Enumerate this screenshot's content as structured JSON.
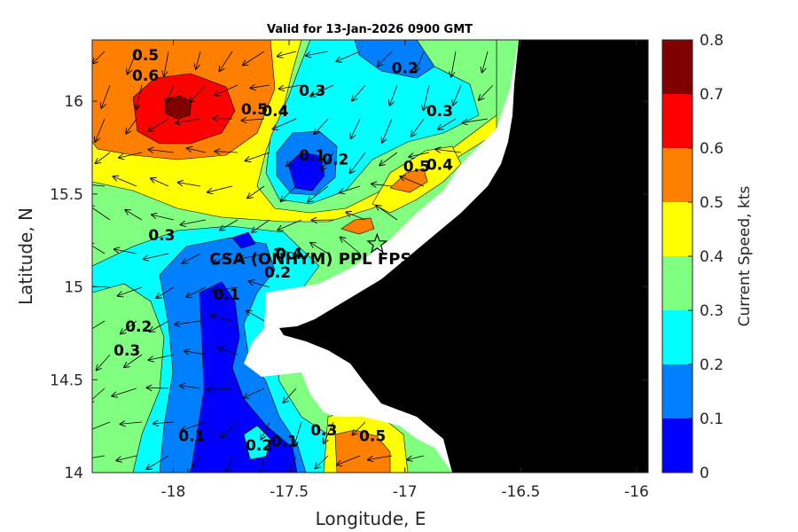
{
  "chart_data": {
    "type": "heatmap",
    "title": "Valid for 13-Jan-2026 0900 GMT",
    "xlabel": "Longitude, E",
    "ylabel": "Latitude, N",
    "xlim": [
      -18.35,
      -15.95
    ],
    "ylim": [
      14.0,
      16.33
    ],
    "xticks": [
      -18,
      -17.5,
      -17,
      -16.5,
      -16
    ],
    "xtick_labels": [
      "-18",
      "-17.5",
      "-17",
      "-16.5",
      "-16"
    ],
    "yticks": [
      14,
      14.5,
      15,
      15.5,
      16
    ],
    "ytick_labels": [
      "14",
      "14.5",
      "15",
      "15.5",
      "16"
    ],
    "colorbar": {
      "label": "Current Speed, kts",
      "range": [
        0,
        0.8
      ],
      "levels": [
        0,
        0.1,
        0.2,
        0.3,
        0.4,
        0.5,
        0.6,
        0.7,
        0.8
      ],
      "tick_labels": [
        "0",
        "0.1",
        "0.2",
        "0.3",
        "0.4",
        "0.5",
        "0.6",
        "0.7",
        "0.8"
      ],
      "colors": [
        "#0000ff",
        "#0080ff",
        "#00ffff",
        "#80ff80",
        "#ffff00",
        "#ff8000",
        "#ff0000",
        "#800000"
      ]
    },
    "site": {
      "name": "CSA (ONHYM) PPL FPSO",
      "lon": -17.12,
      "lat": 15.23
    },
    "land_color": "#000000",
    "contour_labels": [
      {
        "text": "0.5",
        "lon": -18.12,
        "lat": 16.22
      },
      {
        "text": "0.6",
        "lon": -18.12,
        "lat": 16.11
      },
      {
        "text": "0.5",
        "lon": -17.65,
        "lat": 15.93
      },
      {
        "text": "0.4",
        "lon": -17.56,
        "lat": 15.92
      },
      {
        "text": "0.3",
        "lon": -17.4,
        "lat": 16.03
      },
      {
        "text": "0.2",
        "lon": -17.0,
        "lat": 16.15
      },
      {
        "text": "0.3",
        "lon": -16.85,
        "lat": 15.92
      },
      {
        "text": "0.1",
        "lon": -17.4,
        "lat": 15.68
      },
      {
        "text": "0.2",
        "lon": -17.3,
        "lat": 15.66
      },
      {
        "text": "0.5",
        "lon": -16.95,
        "lat": 15.62
      },
      {
        "text": "0.4",
        "lon": -16.85,
        "lat": 15.63
      },
      {
        "text": "0.3",
        "lon": -18.05,
        "lat": 15.25
      },
      {
        "text": "0.2",
        "lon": -17.55,
        "lat": 15.05
      },
      {
        "text": "0.4",
        "lon": -17.5,
        "lat": 15.15
      },
      {
        "text": "0.1",
        "lon": -17.77,
        "lat": 14.93
      },
      {
        "text": "0.2",
        "lon": -18.15,
        "lat": 14.76
      },
      {
        "text": "0.3",
        "lon": -18.2,
        "lat": 14.63
      },
      {
        "text": "0.1",
        "lon": -17.92,
        "lat": 14.17
      },
      {
        "text": "0.2",
        "lon": -17.63,
        "lat": 14.12
      },
      {
        "text": "0.1",
        "lon": -17.52,
        "lat": 14.14
      },
      {
        "text": "0.3",
        "lon": -17.35,
        "lat": 14.2
      },
      {
        "text": "0.5",
        "lon": -17.14,
        "lat": 14.17
      }
    ]
  }
}
